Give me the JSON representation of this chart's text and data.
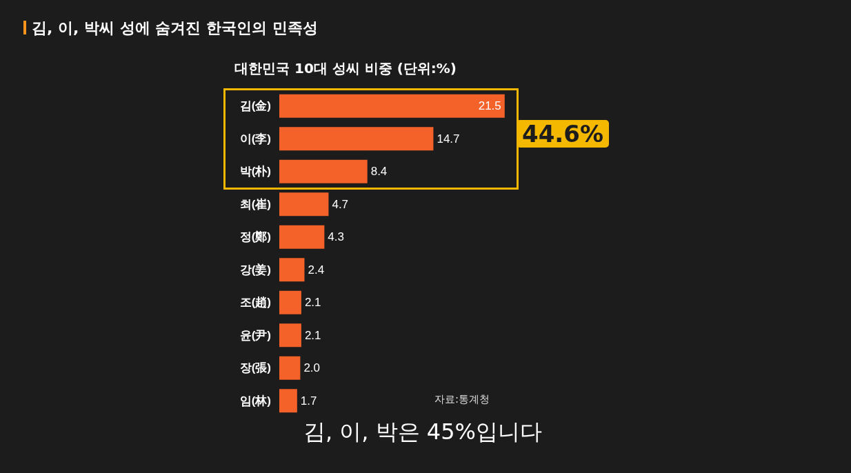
{
  "chart_data": {
    "type": "bar",
    "orientation": "horizontal",
    "title": "김, 이, 박씨 성에 숨겨진 한국인의 민족성",
    "subtitle": "대한민국 10대 성씨 비중 (단위:%)",
    "categories": [
      "김(金)",
      "이(李)",
      "박(朴)",
      "최(崔)",
      "정(鄭)",
      "강(姜)",
      "조(趙)",
      "윤(尹)",
      "장(張)",
      "임(林)"
    ],
    "values": [
      21.5,
      14.7,
      8.4,
      4.7,
      4.3,
      2.4,
      2.1,
      2.1,
      2.0,
      1.7
    ],
    "value_labels": [
      "21.5",
      "14.7",
      "8.4",
      "4.7",
      "4.3",
      "2.4",
      "2.1",
      "2.1",
      "2.0",
      "1.7"
    ],
    "color": "#f4622a",
    "annotations": [
      "44.6%",
      "자료:통계청",
      "김, 이, 박은 45%입니다"
    ]
  }
}
